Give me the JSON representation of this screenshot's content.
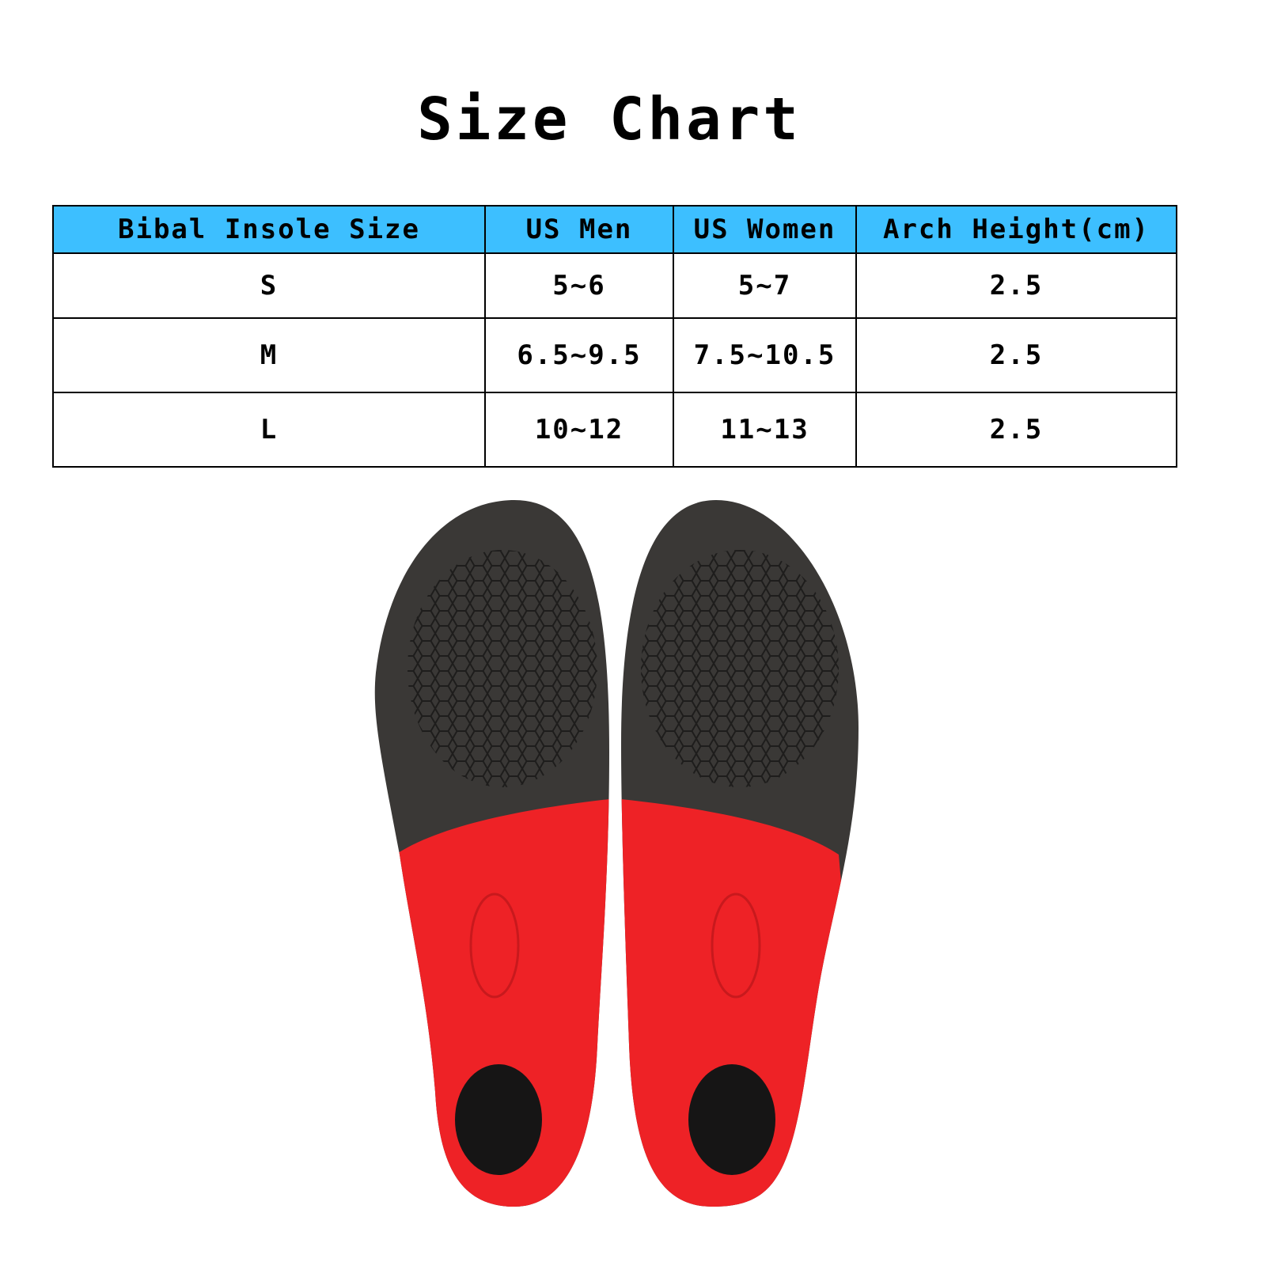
{
  "title": "Size Chart",
  "table": {
    "headers": [
      "Bibal Insole Size",
      "US Men",
      "US Women",
      "Arch Height(cm)"
    ],
    "rows": [
      [
        "S",
        "5~6",
        "5~7",
        "2.5"
      ],
      [
        "M",
        "6.5~9.5",
        "7.5~10.5",
        "2.5"
      ],
      [
        "L",
        "10~12",
        "11~13",
        "2.5"
      ]
    ]
  },
  "colors": {
    "header_bg": "#3dbfff",
    "insole_top": "#3a3836",
    "insole_heel": "#ee2226"
  }
}
